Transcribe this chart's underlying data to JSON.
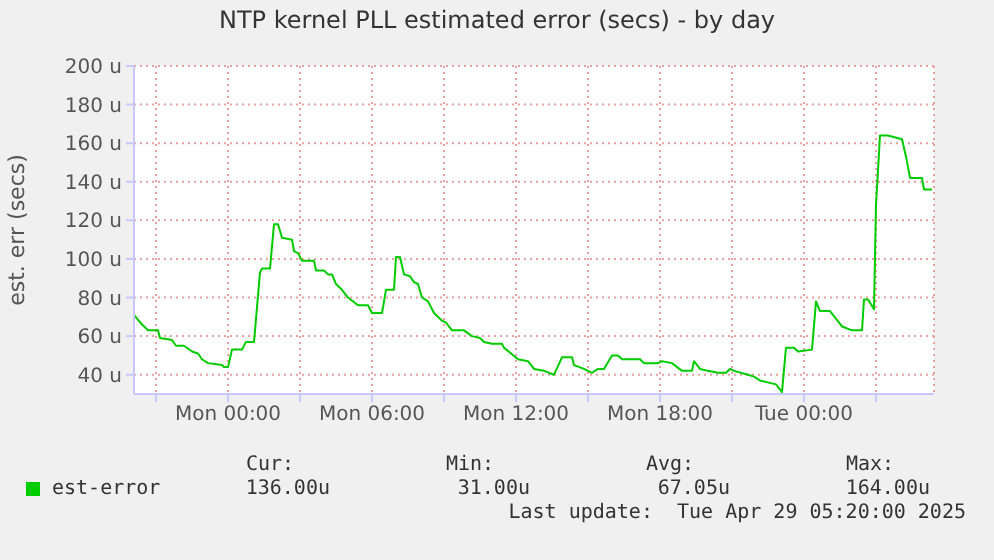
{
  "chart_data": {
    "type": "line",
    "title": "NTP kernel PLL estimated error (secs) - by day",
    "ylabel": "est. err (secs)",
    "x": [
      "2025-04-27T20:05",
      "2025-04-27T20:25",
      "2025-04-27T20:40",
      "2025-04-27T21:05",
      "2025-04-27T21:10",
      "2025-04-27T21:40",
      "2025-04-27T21:50",
      "2025-04-27T22:10",
      "2025-04-27T22:30",
      "2025-04-27T22:45",
      "2025-04-27T22:55",
      "2025-04-27T23:10",
      "2025-04-27T23:45",
      "2025-04-27T23:50",
      "2025-04-28T00:00",
      "2025-04-28T00:10",
      "2025-04-28T00:35",
      "2025-04-28T00:45",
      "2025-04-28T01:05",
      "2025-04-28T01:20",
      "2025-04-28T01:25",
      "2025-04-28T01:45",
      "2025-04-28T01:55",
      "2025-04-28T02:05",
      "2025-04-28T02:15",
      "2025-04-28T02:40",
      "2025-04-28T02:45",
      "2025-04-28T02:55",
      "2025-04-28T03:05",
      "2025-04-28T03:35",
      "2025-04-28T03:40",
      "2025-04-28T04:00",
      "2025-04-28T04:10",
      "2025-04-28T04:20",
      "2025-04-28T04:30",
      "2025-04-28T04:45",
      "2025-04-28T05:00",
      "2025-04-28T05:25",
      "2025-04-28T05:50",
      "2025-04-28T06:00",
      "2025-04-28T06:25",
      "2025-04-28T06:35",
      "2025-04-28T06:55",
      "2025-04-28T07:00",
      "2025-04-28T07:10",
      "2025-04-28T07:20",
      "2025-04-28T07:35",
      "2025-04-28T07:45",
      "2025-04-28T07:55",
      "2025-04-28T08:05",
      "2025-04-28T08:20",
      "2025-04-28T08:35",
      "2025-04-28T08:55",
      "2025-04-28T09:05",
      "2025-04-28T09:20",
      "2025-04-28T09:50",
      "2025-04-28T10:10",
      "2025-04-28T10:30",
      "2025-04-28T10:40",
      "2025-04-28T11:00",
      "2025-04-28T11:25",
      "2025-04-28T11:30",
      "2025-04-28T12:05",
      "2025-04-28T12:30",
      "2025-04-28T12:45",
      "2025-04-28T13:10",
      "2025-04-28T13:35",
      "2025-04-28T13:55",
      "2025-04-28T14:20",
      "2025-04-28T14:25",
      "2025-04-28T14:50",
      "2025-04-28T15:10",
      "2025-04-28T15:25",
      "2025-04-28T15:40",
      "2025-04-28T16:00",
      "2025-04-28T16:15",
      "2025-04-28T16:25",
      "2025-04-28T17:10",
      "2025-04-28T17:20",
      "2025-04-28T17:55",
      "2025-04-28T18:05",
      "2025-04-28T18:30",
      "2025-04-28T18:55",
      "2025-04-28T19:20",
      "2025-04-28T19:25",
      "2025-04-28T19:40",
      "2025-04-28T20:00",
      "2025-04-28T20:25",
      "2025-04-28T20:45",
      "2025-04-28T20:55",
      "2025-04-28T21:05",
      "2025-04-28T21:40",
      "2025-04-28T21:55",
      "2025-04-28T22:10",
      "2025-04-28T22:50",
      "2025-04-28T23:05",
      "2025-04-28T23:15",
      "2025-04-28T23:35",
      "2025-04-28T23:45",
      "2025-04-29T00:20",
      "2025-04-29T00:30",
      "2025-04-29T00:40",
      "2025-04-29T01:05",
      "2025-04-29T01:35",
      "2025-04-29T02:00",
      "2025-04-29T02:25",
      "2025-04-29T02:30",
      "2025-04-29T02:40",
      "2025-04-29T02:55",
      "2025-04-29T03:00",
      "2025-04-29T03:10",
      "2025-04-29T03:30",
      "2025-04-29T04:05",
      "2025-04-29T04:15",
      "2025-04-29T04:25",
      "2025-04-29T04:55",
      "2025-04-29T05:00",
      "2025-04-29T05:20"
    ],
    "series": [
      {
        "name": "est-error",
        "color": "#00cc00",
        "values": [
          71,
          66,
          63,
          63,
          59,
          58,
          55,
          55,
          52,
          51,
          48,
          46,
          45,
          44,
          44,
          53,
          53,
          57,
          57,
          93,
          95,
          95,
          118,
          118,
          111,
          110,
          104,
          103,
          99,
          99,
          94,
          94,
          92,
          92,
          87,
          84,
          80,
          76,
          76,
          72,
          72,
          84,
          84,
          101,
          101,
          92,
          91,
          88,
          87,
          80,
          78,
          72,
          68,
          67,
          63,
          63,
          60,
          59,
          57,
          56,
          56,
          54,
          48,
          47,
          43,
          42,
          40,
          49,
          49,
          45,
          43,
          41,
          43,
          43,
          50,
          50,
          48,
          48,
          46,
          46,
          47,
          46,
          42,
          42,
          47,
          43,
          42,
          41,
          41,
          43,
          42,
          40,
          39,
          37,
          35,
          31,
          54,
          54,
          52,
          53,
          78,
          73,
          73,
          65,
          63,
          63,
          79,
          79,
          74,
          128,
          164,
          164,
          162,
          153,
          142,
          142,
          136,
          136
        ]
      }
    ],
    "xlim": [
      "2025-04-27T20:05",
      "2025-04-29T05:25"
    ],
    "xticks": [
      {
        "value": "2025-04-27T21:00",
        "label": null
      },
      {
        "value": "2025-04-28T00:00",
        "label": "Mon 00:00"
      },
      {
        "value": "2025-04-28T03:00",
        "label": null
      },
      {
        "value": "2025-04-28T06:00",
        "label": "Mon 06:00"
      },
      {
        "value": "2025-04-28T09:00",
        "label": null
      },
      {
        "value": "2025-04-28T12:00",
        "label": "Mon 12:00"
      },
      {
        "value": "2025-04-28T15:00",
        "label": null
      },
      {
        "value": "2025-04-28T18:00",
        "label": "Mon 18:00"
      },
      {
        "value": "2025-04-28T21:00",
        "label": null
      },
      {
        "value": "2025-04-29T00:00",
        "label": "Tue 00:00"
      },
      {
        "value": "2025-04-29T03:00",
        "label": null
      }
    ],
    "ylim": [
      30,
      200
    ],
    "yticks": [
      {
        "value": 40,
        "label": "40 u"
      },
      {
        "value": 60,
        "label": "60 u"
      },
      {
        "value": 80,
        "label": "80 u"
      },
      {
        "value": 100,
        "label": "100 u"
      },
      {
        "value": 120,
        "label": "120 u"
      },
      {
        "value": 140,
        "label": "140 u"
      },
      {
        "value": 160,
        "label": "160 u"
      },
      {
        "value": 180,
        "label": "180 u"
      },
      {
        "value": 200,
        "label": "200 u"
      }
    ],
    "grid": true,
    "legend": "bottom left",
    "annotations": [
      "Cur:",
      "Min:",
      "Avg:",
      "Max:",
      "136.00u",
      "31.00u",
      "67.05u",
      "164.00u",
      "Last update:  Tue Apr 29 05:20:00 2025"
    ]
  }
}
